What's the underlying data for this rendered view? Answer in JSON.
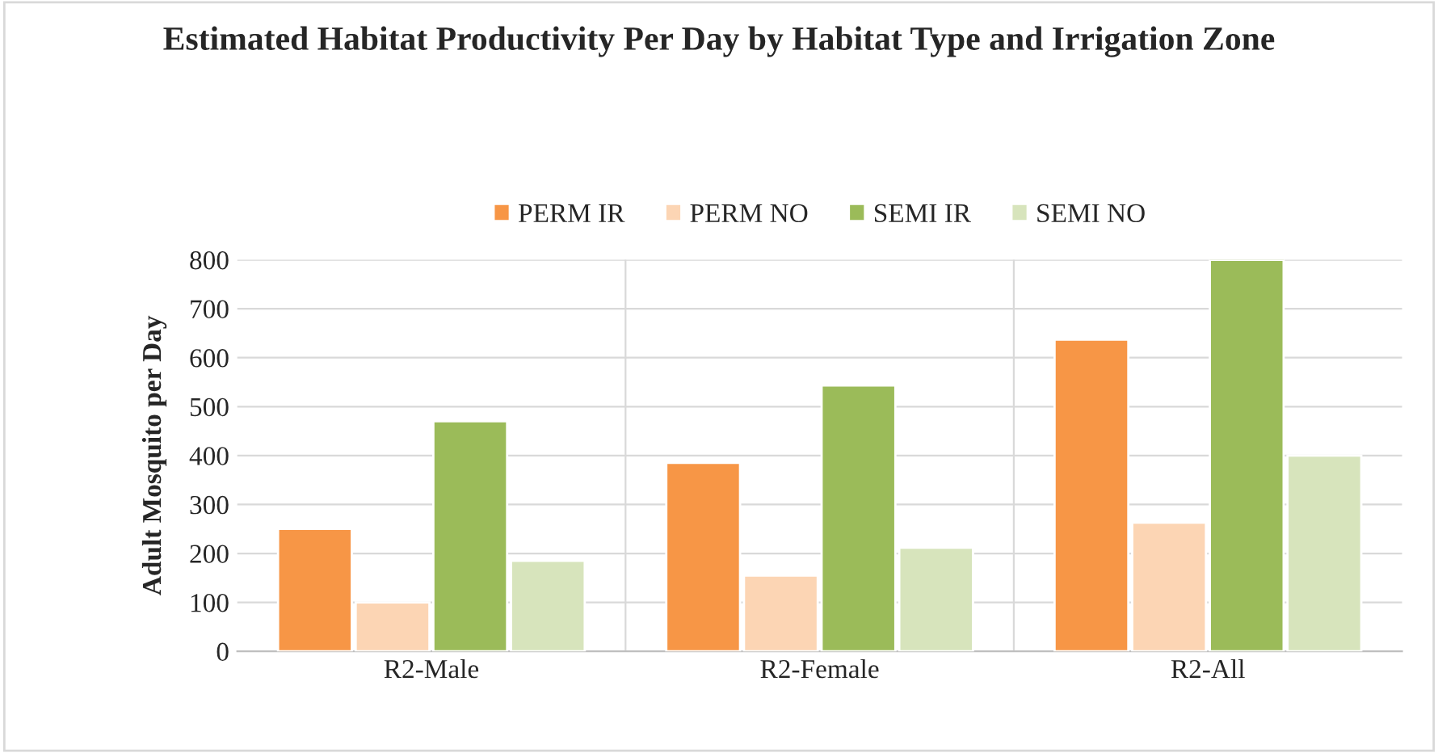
{
  "chart_data": {
    "type": "bar",
    "title": "Estimated Habitat Productivity Per Day by Habitat Type and Irrigation Zone",
    "ylabel": "Adult Mosquito per Day",
    "categories": [
      "R2-Male",
      "R2-Female",
      "R2-All"
    ],
    "series": [
      {
        "name": "PERM IR",
        "color": "#f79646",
        "values": [
          250,
          385,
          637
        ]
      },
      {
        "name": "PERM NO",
        "color": "#fcd5b4",
        "values": [
          100,
          155,
          263
        ]
      },
      {
        "name": "SEMI IR",
        "color": "#9bbb59",
        "values": [
          470,
          543,
          800
        ]
      },
      {
        "name": "SEMI NO",
        "color": "#d7e4bc",
        "values": [
          185,
          212,
          400
        ]
      }
    ],
    "ylim": [
      0,
      800
    ],
    "yticks": [
      0,
      100,
      200,
      300,
      400,
      500,
      600,
      700,
      800
    ],
    "grid": true,
    "legend": "top"
  }
}
